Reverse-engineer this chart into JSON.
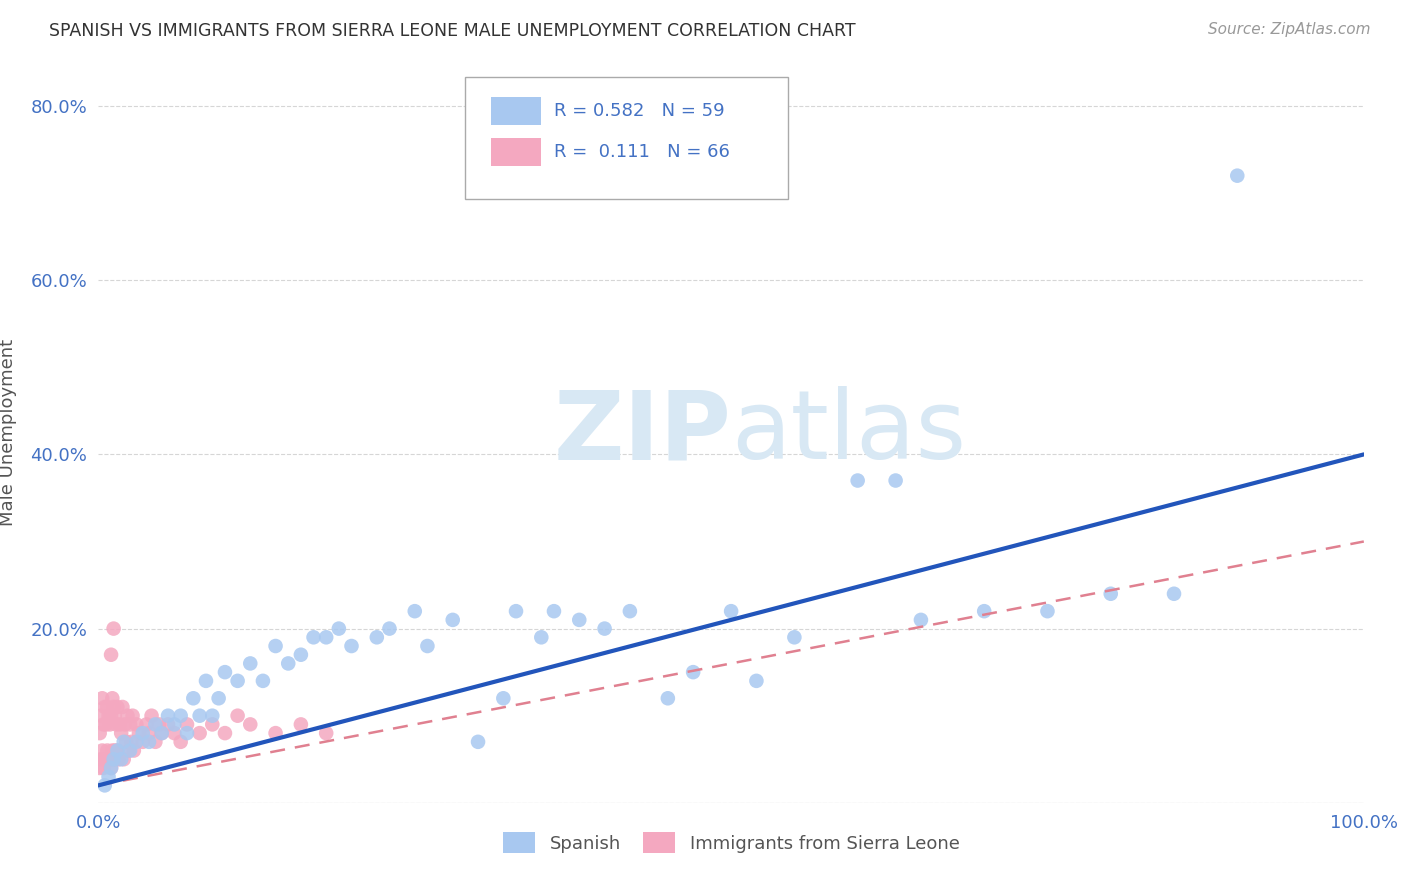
{
  "title": "SPANISH VS IMMIGRANTS FROM SIERRA LEONE MALE UNEMPLOYMENT CORRELATION CHART",
  "source": "Source: ZipAtlas.com",
  "ylabel": "Male Unemployment",
  "xlim": [
    0,
    1.0
  ],
  "ylim": [
    0,
    0.85
  ],
  "spanish_r": 0.582,
  "spanish_n": 59,
  "sierra_leone_r": 0.111,
  "sierra_leone_n": 66,
  "spanish_color": "#a8c8f0",
  "sierra_leone_color": "#f4a8c0",
  "spanish_line_color": "#2255bb",
  "sierra_leone_line_color": "#e08090",
  "legend_r_color": "#4472c4",
  "watermark_color": "#d8e8f4",
  "background_color": "#ffffff",
  "grid_color": "#cccccc",
  "spanish_x": [
    0.005,
    0.008,
    0.01,
    0.012,
    0.015,
    0.018,
    0.02,
    0.025,
    0.03,
    0.035,
    0.04,
    0.045,
    0.05,
    0.055,
    0.06,
    0.065,
    0.07,
    0.075,
    0.08,
    0.085,
    0.09,
    0.095,
    0.1,
    0.11,
    0.12,
    0.13,
    0.14,
    0.15,
    0.16,
    0.17,
    0.18,
    0.19,
    0.2,
    0.22,
    0.23,
    0.25,
    0.26,
    0.28,
    0.3,
    0.32,
    0.33,
    0.35,
    0.36,
    0.38,
    0.4,
    0.42,
    0.45,
    0.47,
    0.5,
    0.52,
    0.55,
    0.6,
    0.63,
    0.65,
    0.7,
    0.75,
    0.8,
    0.85,
    0.9
  ],
  "spanish_y": [
    0.02,
    0.03,
    0.04,
    0.05,
    0.06,
    0.05,
    0.07,
    0.06,
    0.07,
    0.08,
    0.07,
    0.09,
    0.08,
    0.1,
    0.09,
    0.1,
    0.08,
    0.12,
    0.1,
    0.14,
    0.1,
    0.12,
    0.15,
    0.14,
    0.16,
    0.14,
    0.18,
    0.16,
    0.17,
    0.19,
    0.19,
    0.2,
    0.18,
    0.19,
    0.2,
    0.22,
    0.18,
    0.21,
    0.07,
    0.12,
    0.22,
    0.19,
    0.22,
    0.21,
    0.2,
    0.22,
    0.12,
    0.15,
    0.22,
    0.14,
    0.19,
    0.37,
    0.37,
    0.21,
    0.22,
    0.22,
    0.24,
    0.24,
    0.72
  ],
  "sierra_leone_x": [
    0.001,
    0.001,
    0.002,
    0.002,
    0.003,
    0.003,
    0.004,
    0.004,
    0.005,
    0.005,
    0.006,
    0.006,
    0.007,
    0.007,
    0.008,
    0.008,
    0.009,
    0.009,
    0.01,
    0.01,
    0.011,
    0.011,
    0.012,
    0.012,
    0.013,
    0.013,
    0.014,
    0.014,
    0.015,
    0.015,
    0.016,
    0.017,
    0.018,
    0.019,
    0.02,
    0.021,
    0.022,
    0.023,
    0.024,
    0.025,
    0.026,
    0.027,
    0.028,
    0.03,
    0.032,
    0.035,
    0.038,
    0.04,
    0.042,
    0.045,
    0.048,
    0.05,
    0.055,
    0.06,
    0.065,
    0.07,
    0.08,
    0.09,
    0.1,
    0.11,
    0.12,
    0.14,
    0.16,
    0.18,
    0.01,
    0.012
  ],
  "sierra_leone_y": [
    0.04,
    0.08,
    0.05,
    0.1,
    0.06,
    0.12,
    0.04,
    0.09,
    0.05,
    0.11,
    0.05,
    0.09,
    0.06,
    0.11,
    0.05,
    0.1,
    0.05,
    0.09,
    0.04,
    0.1,
    0.06,
    0.12,
    0.05,
    0.11,
    0.06,
    0.1,
    0.05,
    0.09,
    0.06,
    0.11,
    0.05,
    0.09,
    0.08,
    0.11,
    0.05,
    0.09,
    0.07,
    0.1,
    0.06,
    0.09,
    0.07,
    0.1,
    0.06,
    0.09,
    0.08,
    0.07,
    0.09,
    0.08,
    0.1,
    0.07,
    0.09,
    0.08,
    0.09,
    0.08,
    0.07,
    0.09,
    0.08,
    0.09,
    0.08,
    0.1,
    0.09,
    0.08,
    0.09,
    0.08,
    0.17,
    0.2
  ],
  "spanish_line_x": [
    0.0,
    1.0
  ],
  "spanish_line_y": [
    0.02,
    0.4
  ],
  "sierra_leone_line_x": [
    0.0,
    1.0
  ],
  "sierra_leone_line_y": [
    0.02,
    0.3
  ]
}
